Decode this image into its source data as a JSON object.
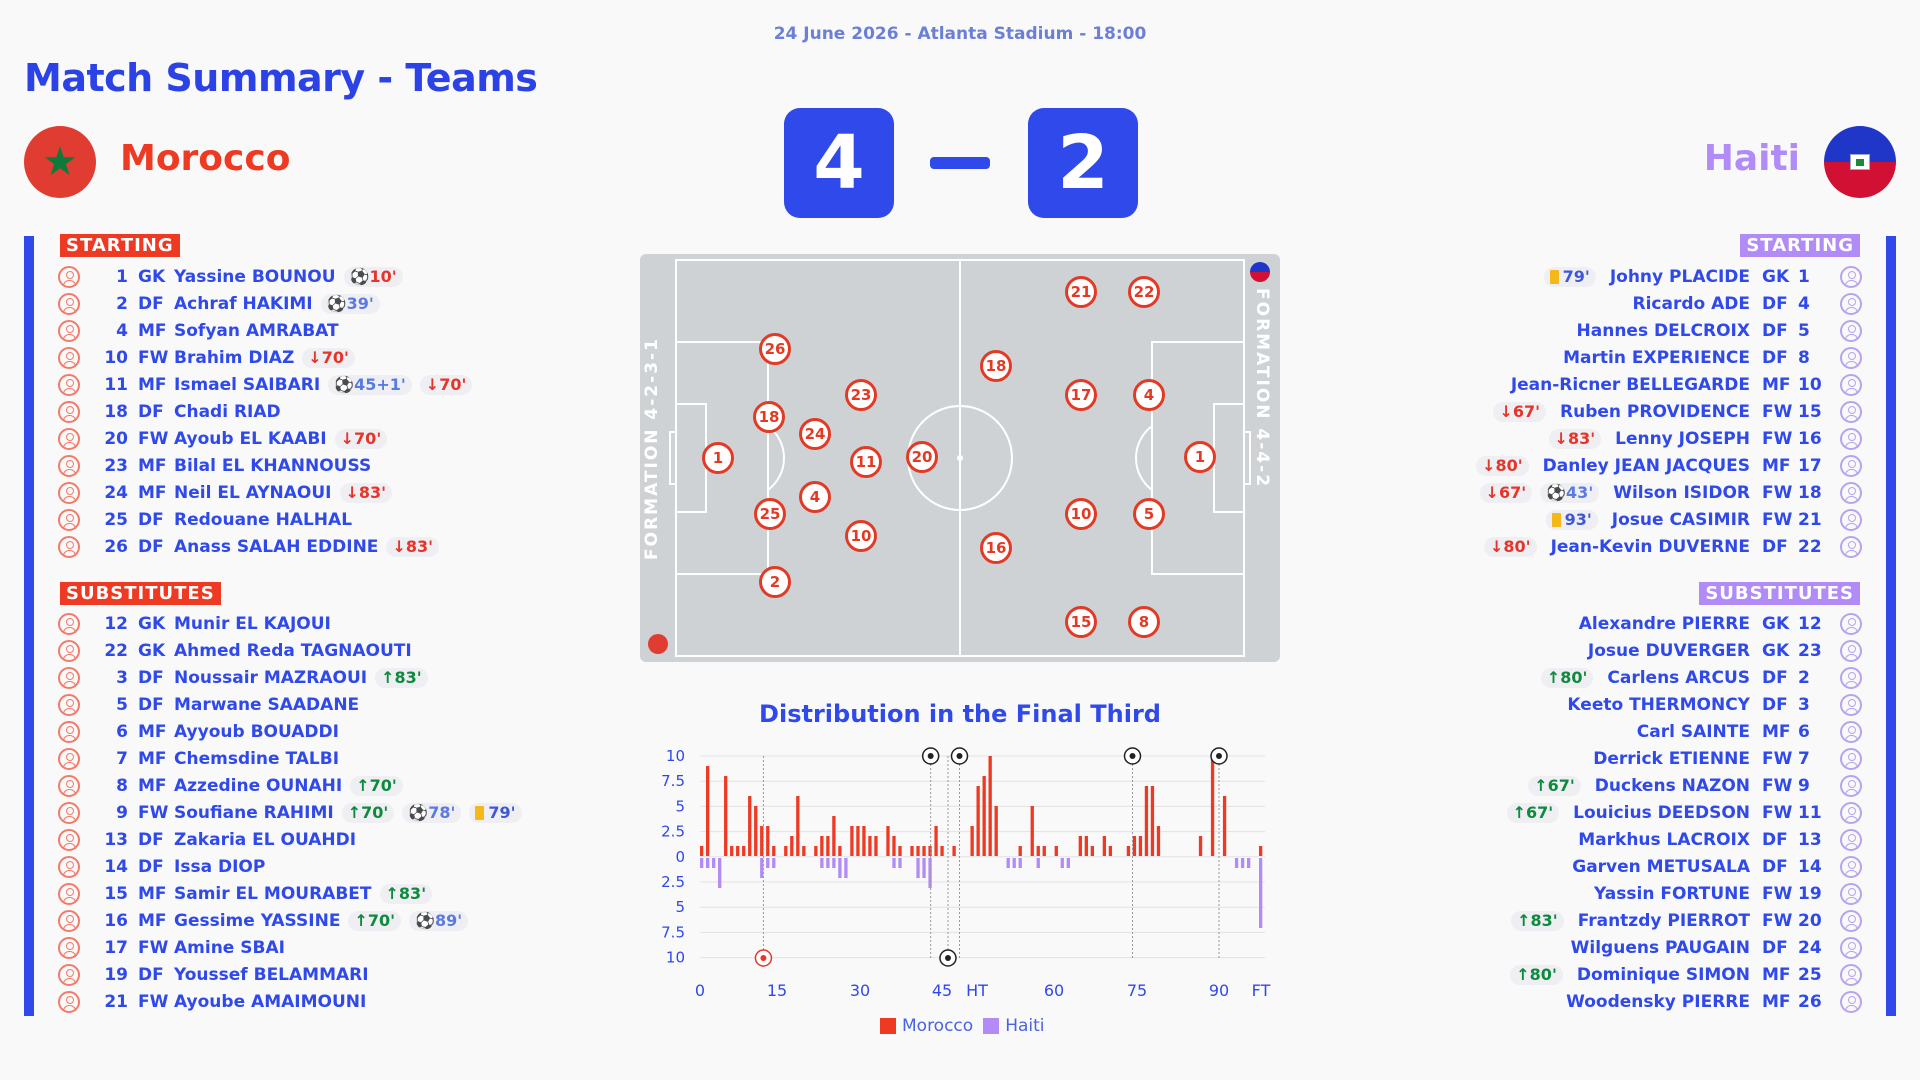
{
  "header": {
    "subtitle": "24 June 2026 - Atlanta Stadium - 18:00",
    "title": "Match Summary - Teams"
  },
  "teams": {
    "home": "Morocco",
    "away": "Haiti"
  },
  "score": {
    "home": "4",
    "away": "2"
  },
  "sections": {
    "starting": "STARTING",
    "substitutes": "SUBSTITUTES"
  },
  "formations": {
    "home": "FORMATION 4-2-3-1",
    "away": "FORMATION 4-4-2"
  },
  "colors": {
    "home": "#ee3a23",
    "away": "#b18cf6",
    "accent": "#2f49ea"
  },
  "morocco_starting": [
    {
      "num": "1",
      "pos": "GK",
      "name": "Yassine BOUNOU",
      "events": [
        {
          "type": "own",
          "text": "10'"
        }
      ]
    },
    {
      "num": "2",
      "pos": "DF",
      "name": "Achraf HAKIMI",
      "events": [
        {
          "type": "goal",
          "text": "39'"
        }
      ]
    },
    {
      "num": "4",
      "pos": "MF",
      "name": "Sofyan AMRABAT",
      "events": []
    },
    {
      "num": "10",
      "pos": "FW",
      "name": "Brahim DIAZ",
      "events": [
        {
          "type": "off",
          "text": "70'"
        }
      ]
    },
    {
      "num": "11",
      "pos": "MF",
      "name": "Ismael SAIBARI",
      "events": [
        {
          "type": "goal",
          "text": "45+1'"
        },
        {
          "type": "off",
          "text": "70'"
        }
      ]
    },
    {
      "num": "18",
      "pos": "DF",
      "name": "Chadi RIAD",
      "events": []
    },
    {
      "num": "20",
      "pos": "FW",
      "name": "Ayoub EL KAABI",
      "events": [
        {
          "type": "off",
          "text": "70'"
        }
      ]
    },
    {
      "num": "23",
      "pos": "MF",
      "name": "Bilal EL KHANNOUSS",
      "events": []
    },
    {
      "num": "24",
      "pos": "MF",
      "name": "Neil EL AYNAOUI",
      "events": [
        {
          "type": "off",
          "text": "83'"
        }
      ]
    },
    {
      "num": "25",
      "pos": "DF",
      "name": "Redouane HALHAL",
      "events": []
    },
    {
      "num": "26",
      "pos": "DF",
      "name": "Anass SALAH EDDINE",
      "events": [
        {
          "type": "off",
          "text": "83'"
        }
      ]
    }
  ],
  "morocco_subs": [
    {
      "num": "12",
      "pos": "GK",
      "name": "Munir EL KAJOUI",
      "events": []
    },
    {
      "num": "22",
      "pos": "GK",
      "name": "Ahmed Reda TAGNAOUTI",
      "events": []
    },
    {
      "num": "3",
      "pos": "DF",
      "name": "Noussair MAZRAOUI",
      "events": [
        {
          "type": "on",
          "text": "83'"
        }
      ]
    },
    {
      "num": "5",
      "pos": "DF",
      "name": "Marwane SAADANE",
      "events": []
    },
    {
      "num": "6",
      "pos": "MF",
      "name": "Ayyoub BOUADDI",
      "events": []
    },
    {
      "num": "7",
      "pos": "MF",
      "name": "Chemsdine TALBI",
      "events": []
    },
    {
      "num": "8",
      "pos": "MF",
      "name": "Azzedine OUNAHI",
      "events": [
        {
          "type": "on",
          "text": "70'"
        }
      ]
    },
    {
      "num": "9",
      "pos": "FW",
      "name": "Soufiane RAHIMI",
      "events": [
        {
          "type": "on",
          "text": "70'"
        },
        {
          "type": "goal",
          "text": "78'"
        },
        {
          "type": "yellow",
          "text": "79'"
        }
      ]
    },
    {
      "num": "13",
      "pos": "DF",
      "name": "Zakaria EL OUAHDI",
      "events": []
    },
    {
      "num": "14",
      "pos": "DF",
      "name": "Issa DIOP",
      "events": []
    },
    {
      "num": "15",
      "pos": "MF",
      "name": "Samir EL MOURABET",
      "events": [
        {
          "type": "on",
          "text": "83'"
        }
      ]
    },
    {
      "num": "16",
      "pos": "MF",
      "name": "Gessime YASSINE",
      "events": [
        {
          "type": "on",
          "text": "70'"
        },
        {
          "type": "goal",
          "text": "89'"
        }
      ]
    },
    {
      "num": "17",
      "pos": "FW",
      "name": "Amine SBAI",
      "events": []
    },
    {
      "num": "19",
      "pos": "DF",
      "name": "Youssef BELAMMARI",
      "events": []
    },
    {
      "num": "21",
      "pos": "FW",
      "name": "Ayoube AMAIMOUNI",
      "events": []
    }
  ],
  "haiti_starting": [
    {
      "num": "1",
      "pos": "GK",
      "name": "Johny PLACIDE",
      "events": [
        {
          "type": "yellow",
          "text": "79'"
        }
      ]
    },
    {
      "num": "4",
      "pos": "DF",
      "name": "Ricardo ADE",
      "events": []
    },
    {
      "num": "5",
      "pos": "DF",
      "name": "Hannes DELCROIX",
      "events": []
    },
    {
      "num": "8",
      "pos": "DF",
      "name": "Martin EXPERIENCE",
      "events": []
    },
    {
      "num": "10",
      "pos": "MF",
      "name": "Jean-Ricner BELLEGARDE",
      "events": []
    },
    {
      "num": "15",
      "pos": "FW",
      "name": "Ruben PROVIDENCE",
      "events": [
        {
          "type": "off",
          "text": "67'"
        }
      ]
    },
    {
      "num": "16",
      "pos": "FW",
      "name": "Lenny JOSEPH",
      "events": [
        {
          "type": "off",
          "text": "83'"
        }
      ]
    },
    {
      "num": "17",
      "pos": "MF",
      "name": "Danley JEAN JACQUES",
      "events": [
        {
          "type": "off",
          "text": "80'"
        }
      ]
    },
    {
      "num": "18",
      "pos": "FW",
      "name": "Wilson ISIDOR",
      "events": [
        {
          "type": "off",
          "text": "67'"
        },
        {
          "type": "goal",
          "text": "43'"
        }
      ]
    },
    {
      "num": "21",
      "pos": "FW",
      "name": "Josue CASIMIR",
      "events": [
        {
          "type": "yellow",
          "text": "93'"
        }
      ]
    },
    {
      "num": "22",
      "pos": "DF",
      "name": "Jean-Kevin DUVERNE",
      "events": [
        {
          "type": "off",
          "text": "80'"
        }
      ]
    }
  ],
  "haiti_subs": [
    {
      "num": "12",
      "pos": "GK",
      "name": "Alexandre PIERRE",
      "events": []
    },
    {
      "num": "23",
      "pos": "GK",
      "name": "Josue DUVERGER",
      "events": []
    },
    {
      "num": "2",
      "pos": "DF",
      "name": "Carlens ARCUS",
      "events": [
        {
          "type": "on",
          "text": "80'"
        }
      ]
    },
    {
      "num": "3",
      "pos": "DF",
      "name": "Keeto THERMONCY",
      "events": []
    },
    {
      "num": "6",
      "pos": "MF",
      "name": "Carl SAINTE",
      "events": []
    },
    {
      "num": "7",
      "pos": "FW",
      "name": "Derrick ETIENNE",
      "events": []
    },
    {
      "num": "9",
      "pos": "FW",
      "name": "Duckens NAZON",
      "events": [
        {
          "type": "on",
          "text": "67'"
        }
      ]
    },
    {
      "num": "11",
      "pos": "FW",
      "name": "Louicius DEEDSON",
      "events": [
        {
          "type": "on",
          "text": "67'"
        }
      ]
    },
    {
      "num": "13",
      "pos": "DF",
      "name": "Markhus LACROIX",
      "events": []
    },
    {
      "num": "14",
      "pos": "DF",
      "name": "Garven METUSALA",
      "events": []
    },
    {
      "num": "19",
      "pos": "FW",
      "name": "Yassin FORTUNE",
      "events": []
    },
    {
      "num": "20",
      "pos": "FW",
      "name": "Frantzdy PIERROT",
      "events": [
        {
          "type": "on",
          "text": "83'"
        }
      ]
    },
    {
      "num": "24",
      "pos": "DF",
      "name": "Wilguens PAUGAIN",
      "events": []
    },
    {
      "num": "25",
      "pos": "MF",
      "name": "Dominique SIMON",
      "events": [
        {
          "type": "on",
          "text": "80'"
        }
      ]
    },
    {
      "num": "26",
      "pos": "MF",
      "name": "Woodensky PIERRE",
      "events": []
    }
  ],
  "pitch_players": [
    "1",
    "26",
    "18",
    "25",
    "2",
    "24",
    "4",
    "23",
    "11",
    "10",
    "20",
    "18",
    "16",
    "21",
    "22",
    "17",
    "4",
    "10",
    "5",
    "15",
    "8",
    "1"
  ],
  "chart_data": {
    "type": "bar",
    "title": "Distribution in the Final Third",
    "yticks": [
      "10",
      "7.5",
      "5",
      "2.5",
      "0",
      "2.5",
      "5",
      "7.5",
      "10"
    ],
    "xticks": [
      "0",
      "15",
      "30",
      "45",
      "HT",
      "60",
      "75",
      "90",
      "FT"
    ],
    "ylim": [
      -10,
      10
    ],
    "series": [
      {
        "name": "Morocco",
        "color": "#ee3a23",
        "values": [
          1,
          9,
          0,
          0,
          8,
          1,
          1,
          1,
          6,
          5,
          3,
          3,
          1,
          0,
          1,
          2,
          6,
          1,
          0,
          1,
          2,
          2,
          4,
          1,
          0,
          3,
          3,
          3,
          2,
          2,
          0,
          3,
          2,
          1,
          0,
          1,
          1,
          1,
          1,
          3,
          1,
          0,
          1,
          0,
          0,
          3,
          7,
          8,
          10,
          5,
          0,
          0,
          0,
          1,
          0,
          5,
          1,
          1,
          0,
          1,
          0,
          0,
          0,
          2,
          2,
          1,
          0,
          2,
          1,
          0,
          0,
          1,
          2,
          2,
          7,
          7,
          3,
          0,
          0,
          0,
          0,
          0,
          0,
          2,
          0,
          10,
          0,
          6,
          0,
          0,
          0,
          0,
          0,
          1
        ]
      },
      {
        "name": "Haiti",
        "color": "#b18cf6",
        "values": [
          1,
          1,
          1,
          3,
          0,
          0,
          0,
          0,
          0,
          0,
          2,
          1,
          1,
          0,
          0,
          0,
          0,
          0,
          0,
          0,
          1,
          1,
          1,
          2,
          2,
          0,
          0,
          0,
          0,
          0,
          0,
          0,
          1,
          1,
          0,
          0,
          2,
          2,
          3,
          0,
          0,
          0,
          0,
          0,
          0,
          0,
          0,
          0,
          0,
          0,
          0,
          1,
          1,
          1,
          0,
          0,
          1,
          0,
          0,
          0,
          1,
          1,
          0,
          0,
          0,
          0,
          0,
          0,
          0,
          0,
          0,
          0,
          0,
          0,
          0,
          0,
          0,
          0,
          0,
          0,
          0,
          0,
          0,
          0,
          0,
          0,
          0,
          0,
          0,
          1,
          1,
          1,
          0,
          7
        ]
      }
    ],
    "goals_home": [
      40,
      45,
      75,
      90
    ],
    "goals_away": [
      11,
      43
    ],
    "legend": [
      "Morocco",
      "Haiti"
    ]
  }
}
